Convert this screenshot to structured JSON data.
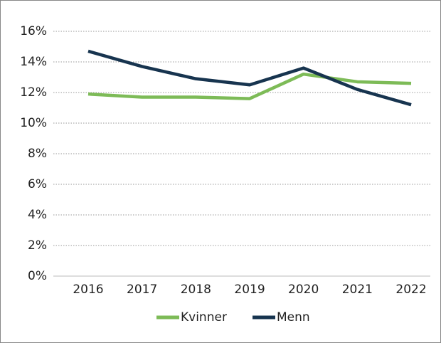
{
  "chart_data": {
    "type": "line",
    "categories": [
      "2016",
      "2017",
      "2018",
      "2019",
      "2020",
      "2021",
      "2022"
    ],
    "series": [
      {
        "name": "Kvinner",
        "color": "#7dbb57",
        "values": [
          11.9,
          11.7,
          11.7,
          11.6,
          13.2,
          12.7,
          12.6
        ]
      },
      {
        "name": "Menn",
        "color": "#17344f",
        "values": [
          14.7,
          13.7,
          12.9,
          12.5,
          13.6,
          12.2,
          11.2
        ]
      }
    ],
    "ylim": [
      0,
      16
    ],
    "yticks": [
      {
        "value": 0,
        "label": "0%"
      },
      {
        "value": 2,
        "label": "2%"
      },
      {
        "value": 4,
        "label": "4%"
      },
      {
        "value": 6,
        "label": "6%"
      },
      {
        "value": 8,
        "label": "8%"
      },
      {
        "value": 10,
        "label": "10%"
      },
      {
        "value": 12,
        "label": "12%"
      },
      {
        "value": 14,
        "label": "14%"
      },
      {
        "value": 16,
        "label": "16%"
      }
    ],
    "grid": true,
    "legend": "bottom"
  }
}
